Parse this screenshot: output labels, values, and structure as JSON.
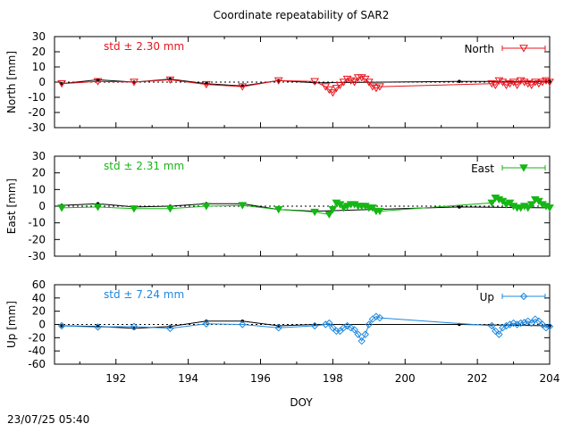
{
  "title": "Coordinate repeatability of SAR2",
  "timestamp": "23/07/25 05:40",
  "colors": {
    "north": "#e8141c",
    "east": "#16b616",
    "up": "#1e88e0",
    "black": "#000000"
  },
  "chart_data": [
    {
      "type": "line",
      "panel": "north",
      "ylabel": "North [mm]",
      "legend": "North",
      "legend_position": "top-right",
      "std_text": "std ± 2.30 mm",
      "ylim": [
        -30,
        30
      ],
      "yticks": [
        -30,
        -20,
        -10,
        0,
        10,
        20,
        30
      ],
      "xlim": [
        190.3,
        204.0
      ],
      "grid": false,
      "zero_line": true,
      "series": [
        {
          "role": "reference",
          "color": "#000000",
          "x": [
            190.5,
            191.5,
            192.5,
            193.5,
            194.5,
            195.5,
            196.5,
            197.5,
            201.5,
            204.0
          ],
          "y": [
            -1,
            1.5,
            0,
            2,
            -1,
            -2.5,
            1,
            -0.5,
            0.5,
            0.5
          ]
        },
        {
          "role": "measured",
          "color": "#e8141c",
          "x": [
            190.5,
            191.5,
            192.5,
            193.5,
            194.5,
            195.5,
            196.5,
            197.5,
            197.8,
            197.9,
            198.0,
            198.1,
            198.2,
            198.3,
            198.4,
            198.5,
            198.6,
            198.7,
            198.8,
            198.9,
            199.0,
            199.1,
            199.2,
            199.3,
            202.4,
            202.5,
            202.6,
            202.7,
            202.8,
            202.9,
            203.0,
            203.1,
            203.2,
            203.3,
            203.4,
            203.5,
            203.6,
            203.7,
            203.8,
            203.9,
            204.0
          ],
          "y": [
            -1,
            0.5,
            0,
            1.5,
            -1.5,
            -3,
            1,
            0.5,
            -3,
            -5,
            -7,
            -4,
            -2,
            0,
            2,
            1,
            0,
            3,
            3,
            2,
            0,
            -3,
            -4,
            -3,
            -1,
            -2,
            1,
            0,
            -2,
            -1,
            0,
            -2,
            1,
            0,
            -1,
            -2,
            0,
            -1,
            0,
            1,
            0
          ]
        }
      ]
    },
    {
      "type": "line",
      "panel": "east",
      "ylabel": "East [mm]",
      "legend": "East",
      "legend_position": "top-right",
      "std_text": "std ± 2.31 mm",
      "ylim": [
        -30,
        30
      ],
      "yticks": [
        -30,
        -20,
        -10,
        0,
        10,
        20,
        30
      ],
      "xlim": [
        190.3,
        204.0
      ],
      "grid": false,
      "zero_line": true,
      "series": [
        {
          "role": "reference",
          "color": "#000000",
          "x": [
            190.5,
            191.5,
            192.5,
            193.5,
            194.5,
            195.5,
            196.5,
            197.5,
            201.5,
            204.0
          ],
          "y": [
            0.5,
            1.5,
            -0.5,
            0,
            1.5,
            1.5,
            -2,
            -3,
            -0.5,
            -1
          ]
        },
        {
          "role": "measured",
          "color": "#16b616",
          "x": [
            190.5,
            191.5,
            192.5,
            193.5,
            194.5,
            195.5,
            196.5,
            197.5,
            197.9,
            198.0,
            198.1,
            198.2,
            198.3,
            198.4,
            198.5,
            198.6,
            198.7,
            198.8,
            198.9,
            199.0,
            199.1,
            199.2,
            199.3,
            202.4,
            202.5,
            202.6,
            202.7,
            202.8,
            202.9,
            203.0,
            203.1,
            203.2,
            203.3,
            203.4,
            203.5,
            203.6,
            203.7,
            203.8,
            203.9,
            204.0
          ],
          "y": [
            -1,
            -0.5,
            -1.5,
            -1.5,
            0,
            0.5,
            -2,
            -3.5,
            -5,
            -2,
            2,
            1,
            -1,
            0,
            1,
            1,
            0,
            0,
            0,
            -1,
            -1,
            -3,
            -3,
            2,
            5,
            4,
            3,
            1,
            2,
            0,
            -1,
            -1,
            0,
            -1,
            1,
            4,
            3,
            1,
            0,
            -1
          ]
        }
      ]
    },
    {
      "type": "line",
      "panel": "up",
      "ylabel": "Up [mm]",
      "legend": "Up",
      "legend_position": "top-right",
      "std_text": "std ± 7.24 mm",
      "ylim": [
        -60,
        60
      ],
      "yticks": [
        -60,
        -40,
        -20,
        0,
        20,
        40,
        60
      ],
      "xlim": [
        190.3,
        204.0
      ],
      "grid": false,
      "zero_line": true,
      "series": [
        {
          "role": "reference",
          "color": "#000000",
          "x": [
            190.5,
            191.5,
            192.5,
            193.5,
            194.5,
            195.5,
            196.5,
            197.5,
            201.5,
            204.0
          ],
          "y": [
            -2,
            -3,
            -6,
            -3,
            5,
            5,
            -2,
            0,
            0,
            -2
          ]
        },
        {
          "role": "measured",
          "color": "#1e88e0",
          "x": [
            190.5,
            191.5,
            192.5,
            193.5,
            194.5,
            195.5,
            196.5,
            197.5,
            197.8,
            197.9,
            198.0,
            198.1,
            198.2,
            198.3,
            198.4,
            198.5,
            198.6,
            198.7,
            198.8,
            198.9,
            199.0,
            199.1,
            199.2,
            199.3,
            202.4,
            202.5,
            202.6,
            202.7,
            202.8,
            202.9,
            203.0,
            203.1,
            203.2,
            203.3,
            203.4,
            203.5,
            203.6,
            203.7,
            203.8,
            203.9,
            204.0
          ],
          "y": [
            -2,
            -4,
            -3,
            -6,
            1,
            0,
            -5,
            -2,
            0,
            2,
            -5,
            -10,
            -10,
            -5,
            -2,
            -5,
            -8,
            -15,
            -25,
            -15,
            0,
            8,
            12,
            10,
            -2,
            -10,
            -15,
            -5,
            -2,
            0,
            2,
            0,
            2,
            3,
            5,
            2,
            8,
            5,
            0,
            -5,
            -3
          ]
        }
      ]
    }
  ],
  "x_axis": {
    "label": "DOY",
    "ticks": [
      192,
      194,
      196,
      198,
      200,
      202,
      204
    ],
    "minor_ticks": [
      191,
      193,
      195,
      197,
      199,
      201,
      203
    ]
  }
}
